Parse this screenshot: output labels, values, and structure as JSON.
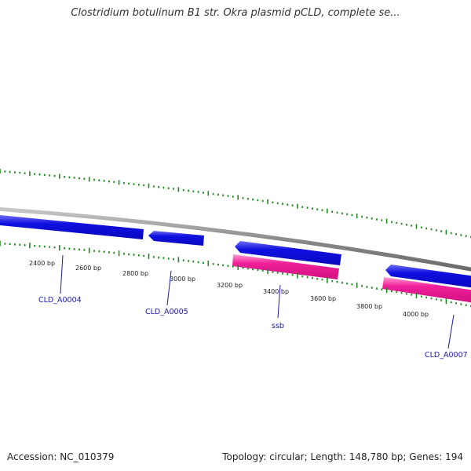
{
  "title": "Clostridium botulinum B1 str. Okra plasmid pCLD, complete se...",
  "colors": {
    "background": "#ffffff",
    "backbone": "#8a8a8a",
    "tick": "#1e8a1e",
    "gene_forward": "#1010e0",
    "gene_forward_highlight": "#6f6ff5",
    "gene_other": "#f0209a",
    "gene_other_highlight": "#ff9ad2",
    "label": "#1a1aa8"
  },
  "ruler_labels": [
    "2400 bp",
    "2600 bp",
    "2800 bp",
    "3000 bp",
    "3200 bp",
    "3400 bp",
    "3600 bp",
    "3800 bp",
    "4000 bp"
  ],
  "genes": [
    {
      "name": "CLD_A0004",
      "label": "CLD_A0004",
      "type": "CDS",
      "strand": "-"
    },
    {
      "name": "CLD_A0005",
      "label": "CLD_A0005",
      "type": "CDS",
      "strand": "-"
    },
    {
      "name": "ssb",
      "label": "ssb",
      "type": "CDS",
      "strand": "-"
    },
    {
      "name": "ssb_gene",
      "label": "",
      "type": "gene",
      "strand": "-"
    },
    {
      "name": "CLD_A0007",
      "label": "CLD_A0007",
      "type": "CDS",
      "strand": "-"
    },
    {
      "name": "CLD_A0007_gene",
      "label": "",
      "type": "gene",
      "strand": "-"
    }
  ],
  "footer": {
    "accession_label": "Accession:",
    "accession": "NC_010379",
    "topology_label": "Topology:",
    "topology": "circular;",
    "length_label": "Length:",
    "length": "148,780 bp;",
    "genes_label": "Genes:",
    "genes_count": "194"
  }
}
